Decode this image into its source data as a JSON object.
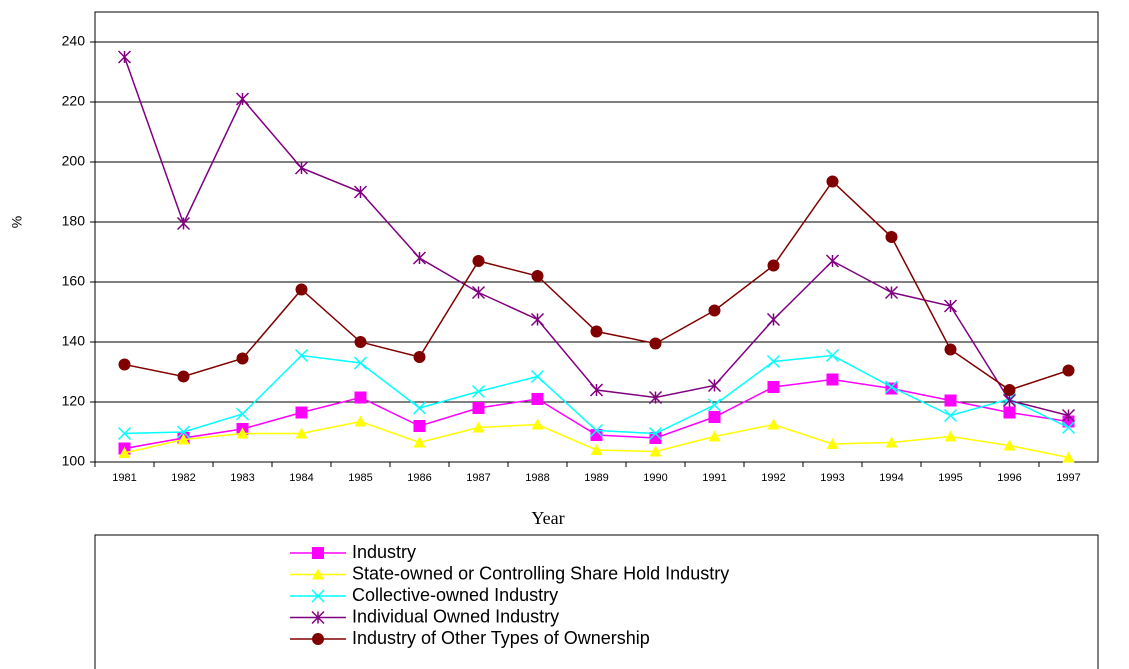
{
  "chart_data": {
    "type": "line",
    "x_label": "Year",
    "y_label": "%",
    "categories": [
      "1981",
      "1982",
      "1983",
      "1984",
      "1985",
      "1986",
      "1987",
      "1988",
      "1989",
      "1990",
      "1991",
      "1992",
      "1993",
      "1994",
      "1995",
      "1996",
      "1997"
    ],
    "ylim": [
      100,
      250
    ],
    "yticks": [
      100,
      120,
      140,
      160,
      180,
      200,
      220,
      240
    ],
    "grid": true,
    "series": [
      {
        "name": "Industry",
        "color": "#ff00ff",
        "marker": "square",
        "values": [
          104.5,
          108,
          111,
          116.5,
          121.5,
          112,
          118,
          121,
          109,
          108,
          115,
          125,
          127.5,
          124.5,
          120.5,
          116.5,
          113.5
        ]
      },
      {
        "name": "State-owned or Controlling Share Hold Industry",
        "color": "#ffff00",
        "marker": "triangle",
        "values": [
          103,
          107.5,
          109.5,
          109.5,
          113.5,
          106.5,
          111.5,
          112.5,
          104,
          103.5,
          108.5,
          112.5,
          106,
          106.5,
          108.5,
          105.5,
          101.5
        ]
      },
      {
        "name": "Collective-owned Industry",
        "color": "#00ffff",
        "marker": "x",
        "values": [
          109.5,
          110,
          116,
          135.5,
          133,
          118,
          123.5,
          128.5,
          110.5,
          109.5,
          119,
          133.5,
          135.5,
          125,
          115.5,
          121,
          111.5
        ]
      },
      {
        "name": "Individual Owned Industry",
        "color": "#800080",
        "marker": "star",
        "values": [
          235,
          179.5,
          221,
          198,
          190,
          168,
          156.5,
          147.5,
          124,
          121.5,
          125.5,
          147.5,
          167,
          156.5,
          152,
          120.5,
          115.5
        ]
      },
      {
        "name": "Industry of Other Types of Ownership",
        "color": "#800000",
        "marker": "circle",
        "values": [
          132.5,
          128.5,
          134.5,
          157.5,
          140,
          135,
          167,
          162,
          143.5,
          139.5,
          150.5,
          165.5,
          193.5,
          175,
          137.5,
          124,
          130.5
        ]
      }
    ]
  }
}
